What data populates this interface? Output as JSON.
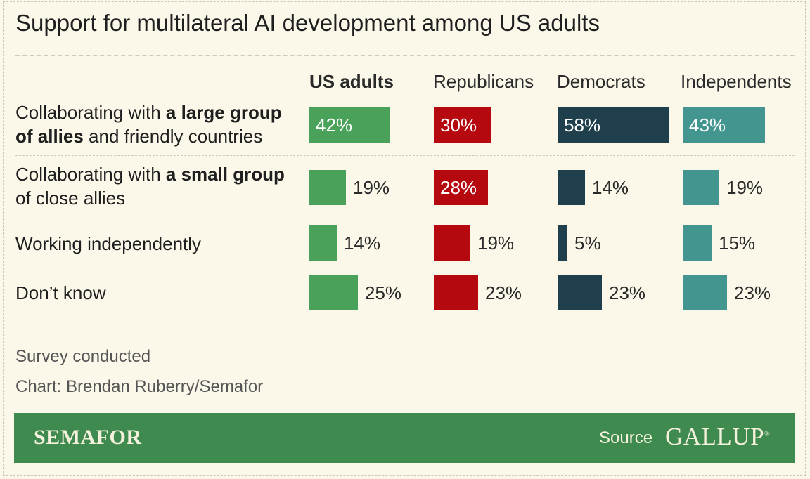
{
  "title": "Support for multilateral AI development among US adults",
  "footer": {
    "survey": "Survey conducted",
    "credit": "Chart: Brendan Ruberry/Semafor"
  },
  "banner": {
    "brand": "SEMAFOR",
    "source_label": "Source",
    "source_name": "GALLUP"
  },
  "rows": [
    {
      "label_parts": [
        {
          "text": "Collaborating with ",
          "bold": false
        },
        {
          "text": "a large group of allies",
          "bold": true
        },
        {
          "text": " and friendly countries",
          "bold": false
        }
      ]
    },
    {
      "label_parts": [
        {
          "text": "Collaborating with ",
          "bold": false
        },
        {
          "text": "a small group",
          "bold": true
        },
        {
          "text": " of close allies",
          "bold": false
        }
      ]
    },
    {
      "label_parts": [
        {
          "text": "Working independently",
          "bold": false
        }
      ]
    },
    {
      "label_parts": [
        {
          "text": "Don’t know",
          "bold": false
        }
      ]
    }
  ],
  "colors": {
    "us_adults": "#4aa159",
    "republicans": "#b5090f",
    "democrats": "#1e3f4b",
    "independents": "#43968f",
    "banner": "#3e8a4f"
  },
  "chart_data": {
    "type": "table",
    "title": "Support for multilateral AI development among US adults",
    "categories": [
      "Collaborating with a large group of allies and friendly countries",
      "Collaborating with a small group of close allies",
      "Working independently",
      "Don’t know"
    ],
    "series": [
      {
        "name": "US adults",
        "key": "us_adults",
        "values": [
          42,
          19,
          14,
          25
        ],
        "labels": [
          "42%",
          "19%",
          "14%",
          "25%"
        ]
      },
      {
        "name": "Republicans",
        "key": "republicans",
        "values": [
          30,
          28,
          19,
          23
        ],
        "labels": [
          "30%",
          "28%",
          "19%",
          "23%"
        ]
      },
      {
        "name": "Democrats",
        "key": "democrats",
        "values": [
          58,
          14,
          5,
          23
        ],
        "labels": [
          "58%",
          "14%",
          "5%",
          "23%"
        ]
      },
      {
        "name": "Independents",
        "key": "independents",
        "values": [
          43,
          19,
          15,
          23
        ],
        "labels": [
          "43%",
          "19%",
          "15%",
          "23%"
        ]
      }
    ],
    "unit": "%",
    "max_value": 58
  }
}
